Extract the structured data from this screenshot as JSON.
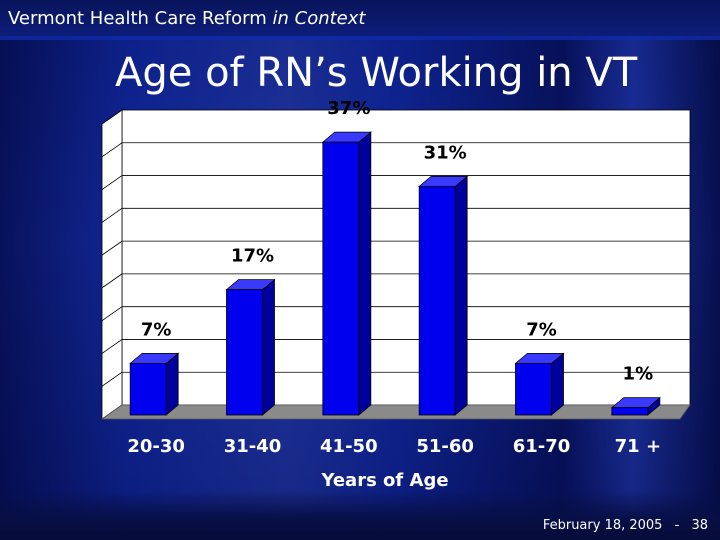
{
  "header": {
    "text_plain": "Vermont Health Care Reform ",
    "text_italic": "in Context"
  },
  "title": "Age of RN’s Working in VT",
  "footer": {
    "date": "February 18, 2005",
    "separator": "-",
    "page": "38"
  },
  "colors": {
    "bar_front": "#0000ee",
    "bar_side": "#00009a",
    "bar_top": "#3a3aff",
    "floor": "#8a8a8a",
    "plot_bg": "#ffffff",
    "grid": "#000000",
    "text": "#ffffff"
  },
  "chart_data": {
    "type": "bar",
    "categories": [
      "20-30",
      "31-40",
      "41-50",
      "51-60",
      "61-70",
      "71 +"
    ],
    "values": [
      7,
      17,
      37,
      31,
      7,
      1
    ],
    "value_labels": [
      "7%",
      "17%",
      "37%",
      "31%",
      "7%",
      "1%"
    ],
    "title": "",
    "xlabel": "Years of Age",
    "ylabel": "",
    "ylim": [
      0,
      40
    ],
    "grid": true,
    "legend": "none",
    "style": "3d"
  }
}
